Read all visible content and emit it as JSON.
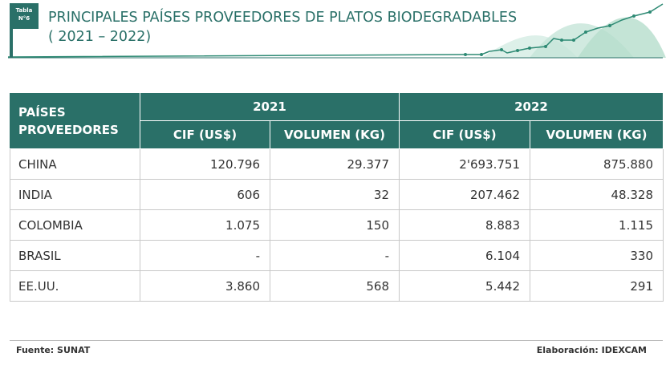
{
  "header": {
    "badge": [
      "Tabla",
      "N°6"
    ],
    "title": "PRINCIPALES PAÍSES PROVEEDORES DE PLATOS BIODEGRADABLES",
    "subtitle": "( 2021 – 2022)"
  },
  "table": {
    "corner": [
      "PAÍSES",
      "PROVEEDORES"
    ],
    "years": [
      "2021",
      "2022"
    ],
    "columns": [
      "CIF (US$)",
      "VOLUMEN (KG)",
      "CIF (US$)",
      "VOLUMEN (KG)"
    ],
    "rows": [
      [
        "CHINA",
        "120.796",
        "29.377",
        "2'693.751",
        "875.880"
      ],
      [
        "INDIA",
        "606",
        "32",
        "207.462",
        "48.328"
      ],
      [
        "COLOMBIA",
        "1.075",
        "150",
        "8.883",
        "1.115"
      ],
      [
        "BRASIL",
        "-",
        "-",
        "6.104",
        "330"
      ],
      [
        "EE.UU.",
        "3.860",
        "568",
        "5.442",
        "291"
      ]
    ]
  },
  "footer": {
    "source": "Fuente: SUNAT",
    "credit": "Elaboración: IDEXCAM"
  }
}
